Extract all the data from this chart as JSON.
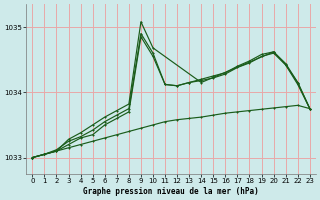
{
  "title": "Graphe pression niveau de la mer (hPa)",
  "bg_color": "#ceeaea",
  "grid_color": "#e8a8a8",
  "line_color": "#1a5c1a",
  "xlim": [
    -0.5,
    23.5
  ],
  "ylim": [
    1032.75,
    1035.35
  ],
  "yticks": [
    1033,
    1034,
    1035
  ],
  "xticks": [
    0,
    1,
    2,
    3,
    4,
    5,
    6,
    7,
    8,
    9,
    10,
    11,
    12,
    13,
    14,
    15,
    16,
    17,
    18,
    19,
    20,
    21,
    22,
    23
  ],
  "line_bottom_x": [
    0,
    1,
    2,
    3,
    4,
    5,
    6,
    7,
    8,
    9,
    10,
    11,
    12,
    13,
    14,
    15,
    16,
    17,
    18,
    19,
    20,
    21,
    22,
    23
  ],
  "line_bottom_y": [
    1033.0,
    1033.05,
    1033.1,
    1033.15,
    1033.2,
    1033.25,
    1033.3,
    1033.35,
    1033.4,
    1033.45,
    1033.5,
    1033.55,
    1033.58,
    1033.6,
    1033.62,
    1033.65,
    1033.68,
    1033.7,
    1033.72,
    1033.74,
    1033.76,
    1033.78,
    1033.8,
    1033.75
  ],
  "line_mid1_x": [
    0,
    1,
    2,
    3,
    4,
    5,
    6,
    7,
    8,
    9,
    10,
    11,
    12,
    13,
    14,
    15,
    16,
    17,
    18,
    19,
    20,
    21,
    22,
    23
  ],
  "line_mid1_y": [
    1033.0,
    1033.05,
    1033.1,
    1033.2,
    1033.3,
    1033.35,
    1033.5,
    1033.6,
    1033.7,
    1034.85,
    1034.55,
    1034.12,
    1034.1,
    1034.15,
    1034.18,
    1034.22,
    1034.28,
    1034.38,
    1034.45,
    1034.55,
    1034.6,
    1034.42,
    1034.12,
    1033.75
  ],
  "line_mid2_x": [
    0,
    1,
    2,
    3,
    4,
    5,
    6,
    7,
    8,
    9,
    10,
    11,
    12,
    13,
    14,
    15,
    16,
    17,
    18,
    19,
    20,
    21,
    22,
    23
  ],
  "line_mid2_y": [
    1033.0,
    1033.05,
    1033.12,
    1033.25,
    1033.32,
    1033.42,
    1033.55,
    1033.65,
    1033.75,
    1034.9,
    1034.6,
    1034.12,
    1034.1,
    1034.15,
    1034.2,
    1034.25,
    1034.3,
    1034.4,
    1034.48,
    1034.58,
    1034.62,
    1034.44,
    1034.15,
    1033.75
  ],
  "line_top_x": [
    0,
    1,
    2,
    3,
    4,
    5,
    6,
    7,
    8,
    9,
    10,
    14,
    20,
    21,
    22,
    23
  ],
  "line_top_y": [
    1033.0,
    1033.05,
    1033.1,
    1033.28,
    1033.38,
    1033.5,
    1033.62,
    1033.72,
    1033.82,
    1035.08,
    1034.68,
    1034.15,
    1034.62,
    1034.42,
    1034.15,
    1033.75
  ]
}
